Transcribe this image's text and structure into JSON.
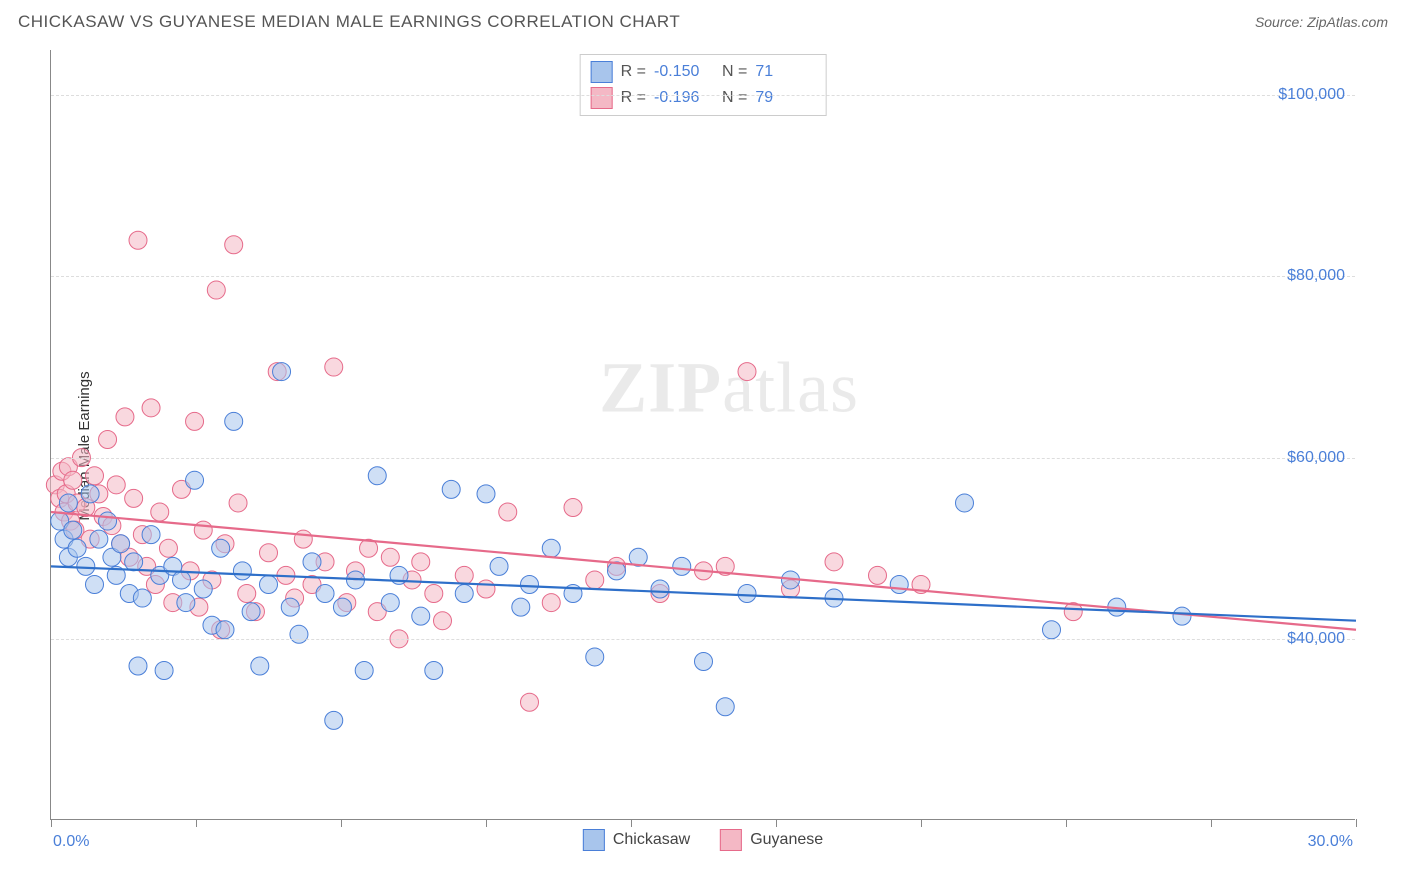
{
  "header": {
    "title": "CHICKASAW VS GUYANESE MEDIAN MALE EARNINGS CORRELATION CHART",
    "source_prefix": "Source: ",
    "source_name": "ZipAtlas.com"
  },
  "watermark": {
    "zip": "ZIP",
    "atlas": "atlas"
  },
  "chart": {
    "type": "scatter",
    "ylabel": "Median Male Earnings",
    "background_color": "#ffffff",
    "grid_color": "#dddddd",
    "axis_color": "#888888",
    "tick_label_color": "#4a7fd8",
    "xlim": [
      0,
      30
    ],
    "ylim": [
      20000,
      105000
    ],
    "xtick_labels": {
      "left": "0.0%",
      "right": "30.0%"
    },
    "xtick_positions": [
      0,
      3.33,
      6.67,
      10,
      13.33,
      16.67,
      20,
      23.33,
      26.67,
      30
    ],
    "ytick_labels": [
      "$40,000",
      "$60,000",
      "$80,000",
      "$100,000"
    ],
    "ytick_values": [
      40000,
      60000,
      80000,
      100000
    ],
    "marker_radius": 9,
    "marker_opacity": 0.55,
    "line_width": 2.2,
    "series": [
      {
        "name": "Chickasaw",
        "color_fill": "#a8c5ec",
        "color_stroke": "#4a7fd8",
        "line_color": "#2e6fc9",
        "R": "-0.150",
        "N": "71",
        "trend": {
          "x1": 0,
          "y1": 48000,
          "x2": 30,
          "y2": 42000
        },
        "points": [
          [
            0.2,
            53000
          ],
          [
            0.3,
            51000
          ],
          [
            0.4,
            49000
          ],
          [
            0.4,
            55000
          ],
          [
            0.5,
            52000
          ],
          [
            0.6,
            50000
          ],
          [
            0.8,
            48000
          ],
          [
            0.9,
            56000
          ],
          [
            1.0,
            46000
          ],
          [
            1.1,
            51000
          ],
          [
            1.3,
            53000
          ],
          [
            1.4,
            49000
          ],
          [
            1.5,
            47000
          ],
          [
            1.6,
            50500
          ],
          [
            1.8,
            45000
          ],
          [
            1.9,
            48500
          ],
          [
            2.0,
            37000
          ],
          [
            2.1,
            44500
          ],
          [
            2.3,
            51500
          ],
          [
            2.5,
            47000
          ],
          [
            2.6,
            36500
          ],
          [
            2.8,
            48000
          ],
          [
            3.0,
            46500
          ],
          [
            3.1,
            44000
          ],
          [
            3.3,
            57500
          ],
          [
            3.5,
            45500
          ],
          [
            3.7,
            41500
          ],
          [
            3.9,
            50000
          ],
          [
            4.0,
            41000
          ],
          [
            4.2,
            64000
          ],
          [
            4.4,
            47500
          ],
          [
            4.6,
            43000
          ],
          [
            4.8,
            37000
          ],
          [
            5.0,
            46000
          ],
          [
            5.3,
            69500
          ],
          [
            5.5,
            43500
          ],
          [
            5.7,
            40500
          ],
          [
            6.0,
            48500
          ],
          [
            6.3,
            45000
          ],
          [
            6.5,
            31000
          ],
          [
            6.7,
            43500
          ],
          [
            7.0,
            46500
          ],
          [
            7.2,
            36500
          ],
          [
            7.5,
            58000
          ],
          [
            7.8,
            44000
          ],
          [
            8.0,
            47000
          ],
          [
            8.5,
            42500
          ],
          [
            8.8,
            36500
          ],
          [
            9.2,
            56500
          ],
          [
            9.5,
            45000
          ],
          [
            10.0,
            56000
          ],
          [
            10.3,
            48000
          ],
          [
            10.8,
            43500
          ],
          [
            11.0,
            46000
          ],
          [
            11.5,
            50000
          ],
          [
            12.0,
            45000
          ],
          [
            12.5,
            38000
          ],
          [
            13.0,
            47500
          ],
          [
            13.5,
            49000
          ],
          [
            14.0,
            45500
          ],
          [
            14.5,
            48000
          ],
          [
            15.0,
            37500
          ],
          [
            15.5,
            32500
          ],
          [
            16.0,
            45000
          ],
          [
            17.0,
            46500
          ],
          [
            18.0,
            44500
          ],
          [
            19.5,
            46000
          ],
          [
            21.0,
            55000
          ],
          [
            23.0,
            41000
          ],
          [
            24.5,
            43500
          ],
          [
            26.0,
            42500
          ]
        ]
      },
      {
        "name": "Guyanese",
        "color_fill": "#f4b8c5",
        "color_stroke": "#e66a8a",
        "line_color": "#e66a8a",
        "R": "-0.196",
        "N": "79",
        "trend": {
          "x1": 0,
          "y1": 54000,
          "x2": 30,
          "y2": 41000
        },
        "points": [
          [
            0.1,
            57000
          ],
          [
            0.2,
            55500
          ],
          [
            0.25,
            58500
          ],
          [
            0.3,
            54000
          ],
          [
            0.35,
            56000
          ],
          [
            0.4,
            59000
          ],
          [
            0.45,
            53000
          ],
          [
            0.5,
            57500
          ],
          [
            0.55,
            52000
          ],
          [
            0.6,
            55000
          ],
          [
            0.7,
            60000
          ],
          [
            0.8,
            54500
          ],
          [
            0.9,
            51000
          ],
          [
            1.0,
            58000
          ],
          [
            1.1,
            56000
          ],
          [
            1.2,
            53500
          ],
          [
            1.3,
            62000
          ],
          [
            1.4,
            52500
          ],
          [
            1.5,
            57000
          ],
          [
            1.6,
            50500
          ],
          [
            1.7,
            64500
          ],
          [
            1.8,
            49000
          ],
          [
            1.9,
            55500
          ],
          [
            2.0,
            84000
          ],
          [
            2.1,
            51500
          ],
          [
            2.2,
            48000
          ],
          [
            2.3,
            65500
          ],
          [
            2.4,
            46000
          ],
          [
            2.5,
            54000
          ],
          [
            2.7,
            50000
          ],
          [
            2.8,
            44000
          ],
          [
            3.0,
            56500
          ],
          [
            3.2,
            47500
          ],
          [
            3.3,
            64000
          ],
          [
            3.4,
            43500
          ],
          [
            3.5,
            52000
          ],
          [
            3.7,
            46500
          ],
          [
            3.8,
            78500
          ],
          [
            3.9,
            41000
          ],
          [
            4.0,
            50500
          ],
          [
            4.2,
            83500
          ],
          [
            4.3,
            55000
          ],
          [
            4.5,
            45000
          ],
          [
            4.7,
            43000
          ],
          [
            5.0,
            49500
          ],
          [
            5.2,
            69500
          ],
          [
            5.4,
            47000
          ],
          [
            5.6,
            44500
          ],
          [
            5.8,
            51000
          ],
          [
            6.0,
            46000
          ],
          [
            6.3,
            48500
          ],
          [
            6.5,
            70000
          ],
          [
            6.8,
            44000
          ],
          [
            7.0,
            47500
          ],
          [
            7.3,
            50000
          ],
          [
            7.5,
            43000
          ],
          [
            7.8,
            49000
          ],
          [
            8.0,
            40000
          ],
          [
            8.3,
            46500
          ],
          [
            8.5,
            48500
          ],
          [
            8.8,
            45000
          ],
          [
            9.0,
            42000
          ],
          [
            9.5,
            47000
          ],
          [
            10.0,
            45500
          ],
          [
            10.5,
            54000
          ],
          [
            11.0,
            33000
          ],
          [
            11.5,
            44000
          ],
          [
            12.0,
            54500
          ],
          [
            12.5,
            46500
          ],
          [
            13.0,
            48000
          ],
          [
            14.0,
            45000
          ],
          [
            15.0,
            47500
          ],
          [
            15.5,
            48000
          ],
          [
            16.0,
            69500
          ],
          [
            17.0,
            45500
          ],
          [
            18.0,
            48500
          ],
          [
            19.0,
            47000
          ],
          [
            20.0,
            46000
          ],
          [
            23.5,
            43000
          ]
        ]
      }
    ]
  },
  "legend_top": {
    "r_label": "R =",
    "n_label": "N ="
  }
}
